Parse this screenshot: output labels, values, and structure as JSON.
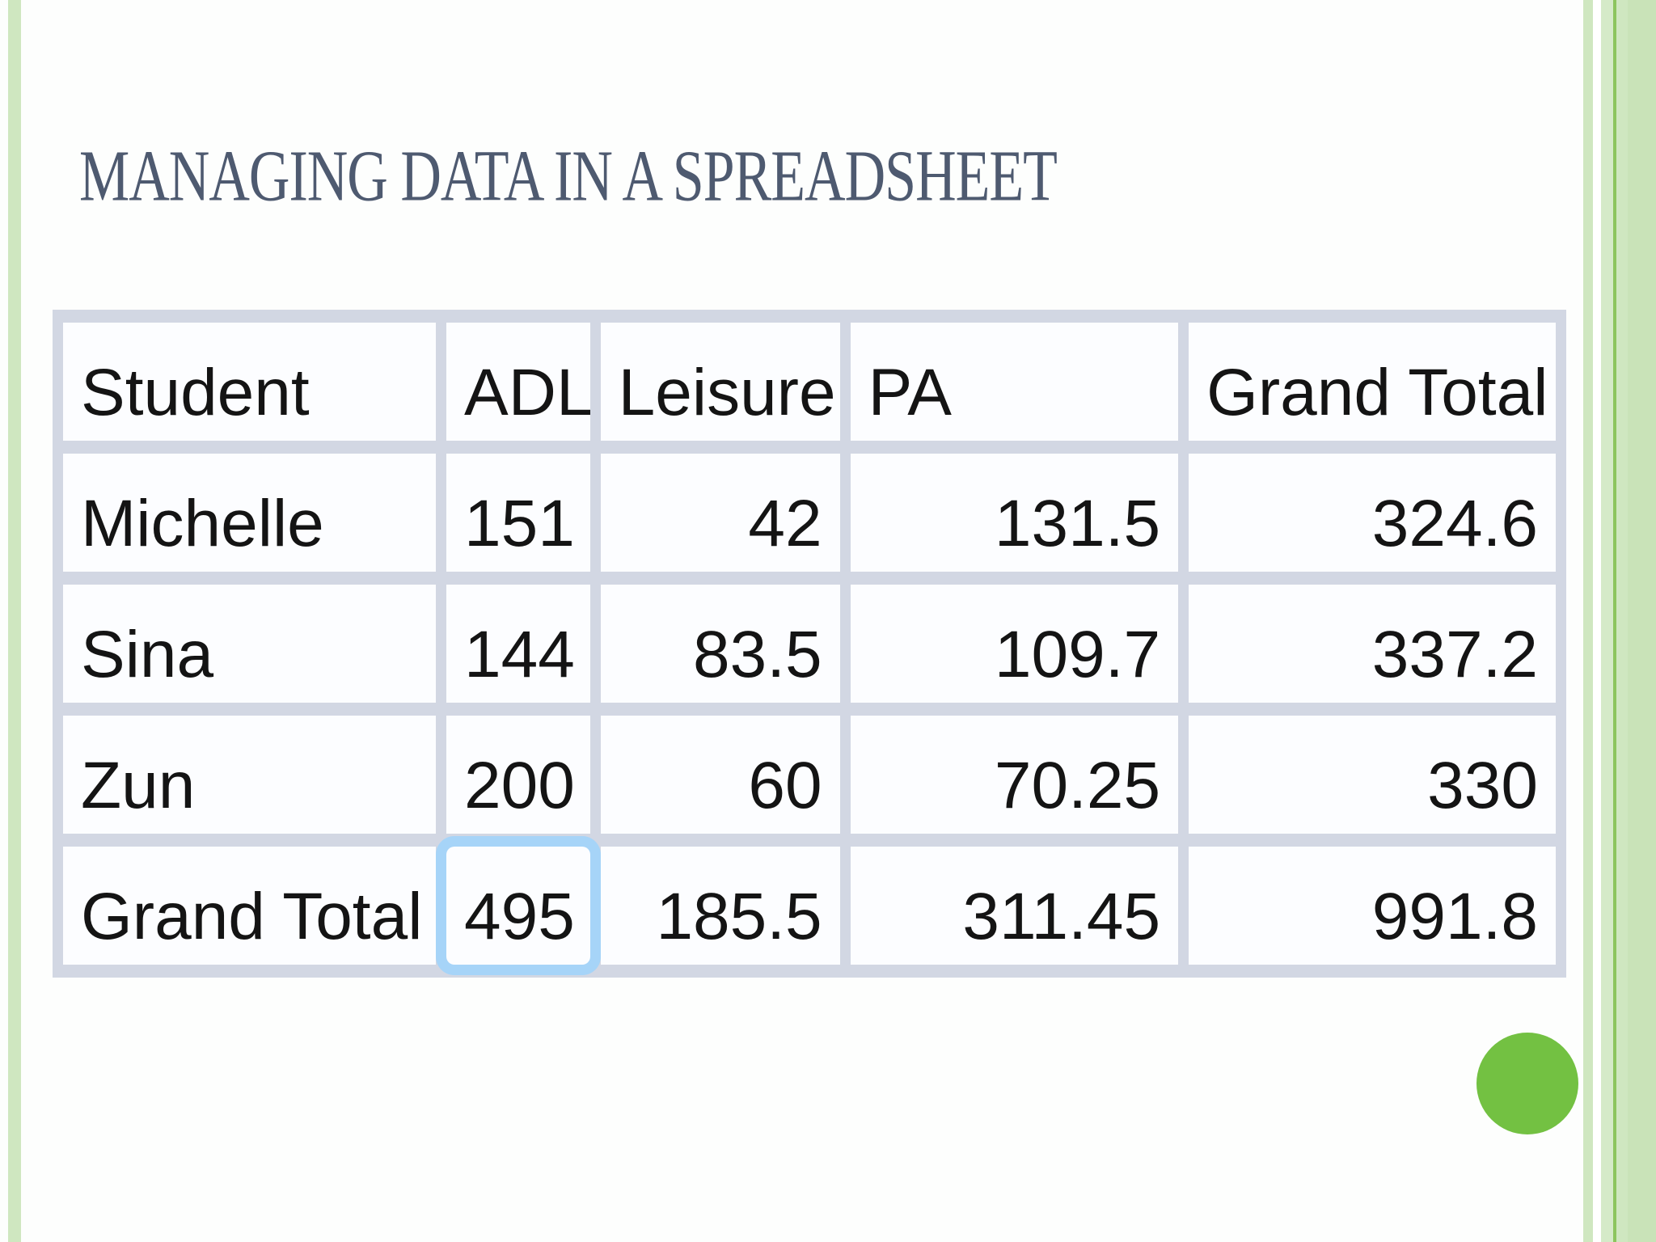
{
  "slide": {
    "title": "MANAGING DATA IN A SPREADSHEET",
    "title_color": "#4e5a70"
  },
  "table": {
    "columns": [
      "Student",
      "ADL",
      "Leisure",
      "PA",
      "Grand Total"
    ],
    "rows": [
      {
        "label": "Michelle",
        "values": [
          "151",
          "42",
          "131.5",
          "324.6"
        ]
      },
      {
        "label": "Sina",
        "values": [
          "144",
          "83.5",
          "109.7",
          "337.2"
        ]
      },
      {
        "label": "Zun",
        "values": [
          "200",
          "60",
          "70.25",
          "330"
        ]
      },
      {
        "label": "Grand Total",
        "values": [
          "495",
          "185.5",
          "311.45",
          "991.8"
        ]
      }
    ],
    "highlight_cell": {
      "row_index": 3,
      "value_index": 0,
      "background": "#a6d4f8",
      "text_color": "#e22a80"
    },
    "grid_color": "#d2d7e3",
    "cell_background": "#fcfdff"
  },
  "decorations": {
    "circle_color": "#73c142",
    "stripe_color": "#cfe7c0"
  },
  "chart_data": {
    "type": "table",
    "title": "MANAGING DATA IN A SPREADSHEET",
    "columns": [
      "Student",
      "ADL",
      "Leisure",
      "PA",
      "Grand Total"
    ],
    "rows": [
      [
        "Michelle",
        151,
        42,
        131.5,
        324.6
      ],
      [
        "Sina",
        144,
        83.5,
        109.7,
        337.2
      ],
      [
        "Zun",
        200,
        60,
        70.25,
        330
      ],
      [
        "Grand Total",
        495,
        185.5,
        311.45,
        991.8
      ]
    ]
  }
}
